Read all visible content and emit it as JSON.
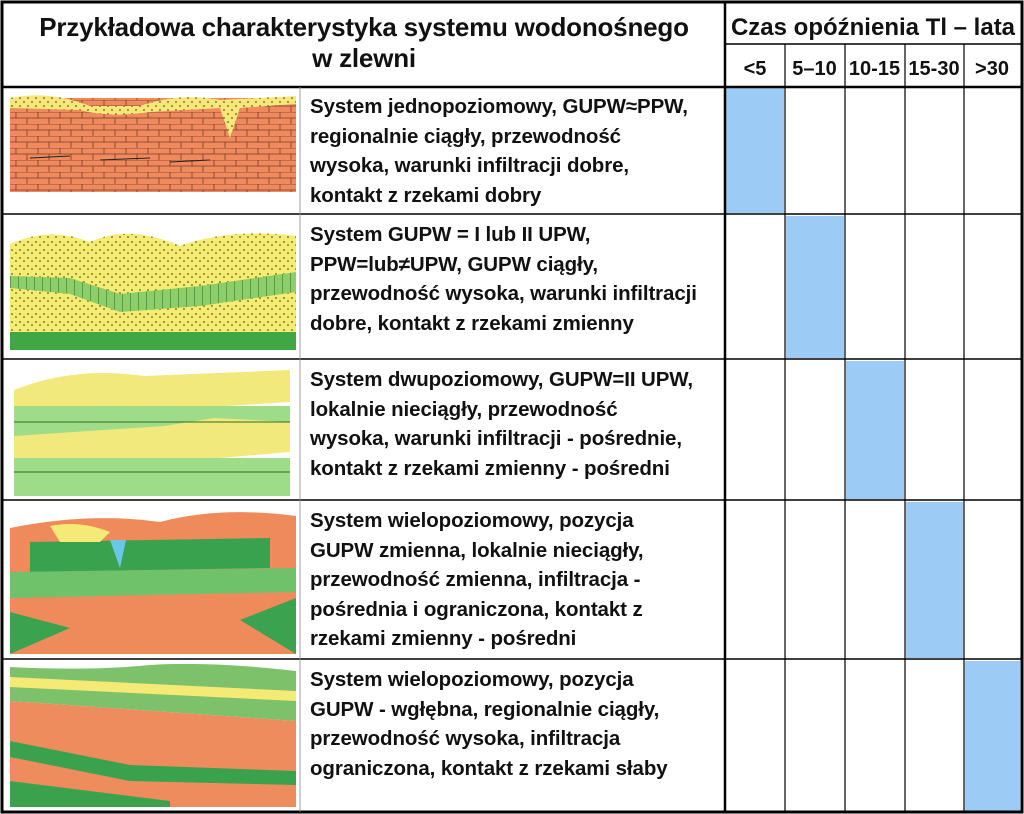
{
  "header": {
    "title_line1": "Przykładowa charakterystyka  systemu wodonośnego",
    "title_line2": "w zlewni",
    "delay_title": "Czas opóźnienia Tl – lata",
    "delay_columns": [
      "<5",
      "5–10",
      "10-15",
      "15-30",
      ">30"
    ]
  },
  "rows": [
    {
      "description": "System jednopoziomowy, GUPW≈PPW,\nregionalnie ciągły, przewodność\nwysoka, warunki infiltracji dobre,\nkontakt z rzekami dobry",
      "delay_column_index": 0
    },
    {
      "description": "System GUPW = I lub II UPW,\nPPW=lub≠UPW, GUPW ciągły,\nprzewodność wysoka, warunki infiltracji\ndobre, kontakt z rzekami zmienny",
      "delay_column_index": 1
    },
    {
      "description": "System dwupoziomowy, GUPW=II UPW,\nlokalnie nieciągły, przewodność\nwysoka, warunki infiltracji - pośrednie,\nkontakt z rzekami zmienny - pośredni",
      "delay_column_index": 2
    },
    {
      "description": "System wielopoziomowy, pozycja\nGUPW zmienna, lokalnie nieciągły,\nprzewodność zmienna, infiltracja -\npośrednia i ograniczona, kontakt z\nrzekami zmienny - pośredni",
      "delay_column_index": 3
    },
    {
      "description": "System wielopoziomowy, pozycja\nGUPW - wgłębna, regionalnie ciągły,\nprzewodność wysoka, infiltracja\nograniczona, kontakt z rzekami słaby",
      "delay_column_index": 4
    }
  ],
  "colors": {
    "highlight": "#9ccbf6",
    "border": "#000000"
  }
}
